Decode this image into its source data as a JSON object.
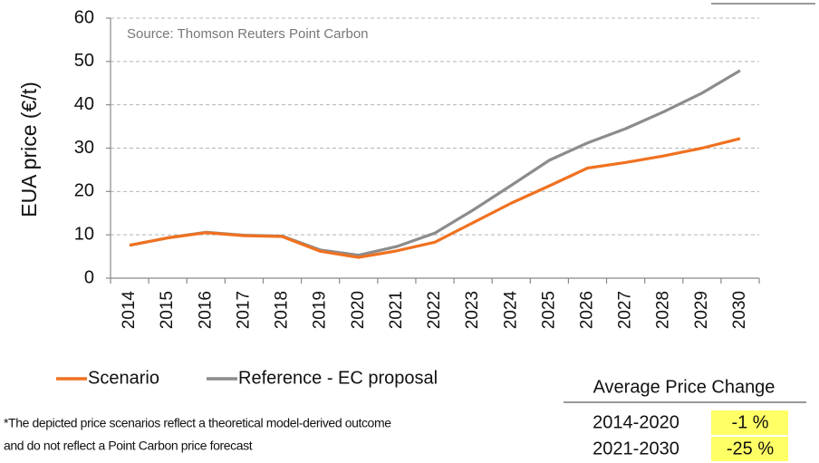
{
  "chart_data": {
    "type": "line",
    "y_label": "EUA price (€/t)",
    "source": "Source: Thomson Reuters Point Carbon",
    "categories": [
      "2014",
      "2015",
      "2016",
      "2017",
      "2018",
      "2019",
      "2020",
      "2021",
      "2022",
      "2023",
      "2024",
      "2025",
      "2026",
      "2027",
      "2028",
      "2029",
      "2030"
    ],
    "series": [
      {
        "name": "Scenario",
        "color": "#f07120",
        "values": [
          7.6,
          9.3,
          10.5,
          9.8,
          9.6,
          6.2,
          4.8,
          6.3,
          8.3,
          12.8,
          17.3,
          21.3,
          25.4,
          26.7,
          28.2,
          30.0,
          32.2
        ]
      },
      {
        "name": "Reference - EC proposal",
        "color": "#8c8c8c",
        "values": [
          7.6,
          9.3,
          10.6,
          9.9,
          9.7,
          6.5,
          5.3,
          7.3,
          10.4,
          15.7,
          21.4,
          27.2,
          31.2,
          34.5,
          38.4,
          42.7,
          47.9
        ]
      }
    ],
    "ylim": [
      0,
      60
    ],
    "yticks": [
      0,
      10,
      20,
      30,
      40,
      50,
      60
    ],
    "grid": true
  },
  "footnote": [
    "*The depicted price scenarios reflect a theoretical model-derived outcome",
    "and do not reflect a Point Carbon price forecast"
  ],
  "table": {
    "title": "Average Price Change",
    "rows": [
      [
        "2014-2020",
        "-1 %"
      ],
      [
        "2021-2030",
        "-25 %"
      ]
    ]
  }
}
